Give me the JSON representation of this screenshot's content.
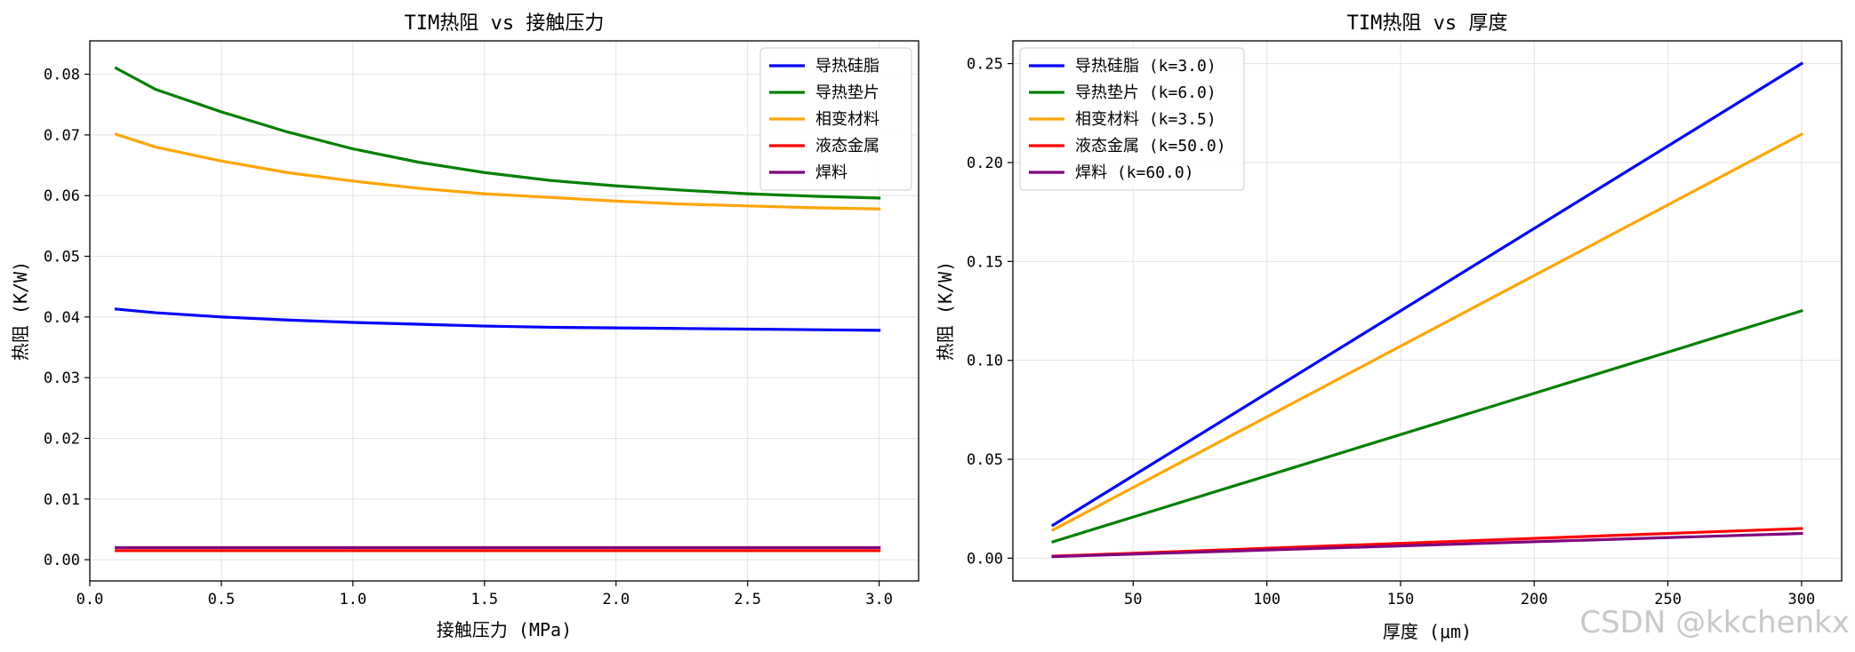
{
  "chart_data": [
    {
      "type": "line",
      "title": "TIM热阻 vs 接触压力",
      "xlabel": "接触压力 (MPa)",
      "ylabel": "热阻 (K/W)",
      "xlim": [
        -0.0,
        3.15
      ],
      "ylim": [
        -0.0035,
        0.0855
      ],
      "xticks": [
        0.0,
        0.5,
        1.0,
        1.5,
        2.0,
        2.5,
        3.0
      ],
      "xtick_labels": [
        "0.0",
        "0.5",
        "1.0",
        "1.5",
        "2.0",
        "2.5",
        "3.0"
      ],
      "yticks": [
        0.0,
        0.01,
        0.02,
        0.03,
        0.04,
        0.05,
        0.06,
        0.07,
        0.08
      ],
      "ytick_labels": [
        "0.00",
        "0.01",
        "0.02",
        "0.03",
        "0.04",
        "0.05",
        "0.06",
        "0.07",
        "0.08"
      ],
      "grid": true,
      "legend_position": "upper-right",
      "x": [
        0.1,
        0.25,
        0.5,
        0.75,
        1.0,
        1.25,
        1.5,
        1.75,
        2.0,
        2.25,
        2.5,
        2.75,
        3.0
      ],
      "series": [
        {
          "name": "导热硅脂",
          "color": "#0000ff",
          "values": [
            0.0413,
            0.0407,
            0.04,
            0.0395,
            0.0391,
            0.0388,
            0.0385,
            0.0383,
            0.0382,
            0.0381,
            0.038,
            0.0379,
            0.0378
          ]
        },
        {
          "name": "导热垫片",
          "color": "#008000",
          "values": [
            0.081,
            0.0775,
            0.0738,
            0.0705,
            0.0677,
            0.0655,
            0.0638,
            0.0625,
            0.0616,
            0.0609,
            0.0603,
            0.0599,
            0.0596
          ]
        },
        {
          "name": "相变材料",
          "color": "#ffa500",
          "values": [
            0.0701,
            0.068,
            0.0657,
            0.0638,
            0.0624,
            0.0612,
            0.0603,
            0.0597,
            0.0591,
            0.0586,
            0.0583,
            0.058,
            0.0578
          ]
        },
        {
          "name": "液态金属",
          "color": "#ff0000",
          "values": [
            0.0015,
            0.0015,
            0.0015,
            0.0015,
            0.0015,
            0.0015,
            0.0015,
            0.0015,
            0.0015,
            0.0015,
            0.0015,
            0.0015,
            0.0015
          ]
        },
        {
          "name": "焊料",
          "color": "#800080",
          "values": [
            0.002,
            0.002,
            0.002,
            0.002,
            0.002,
            0.002,
            0.002,
            0.002,
            0.002,
            0.002,
            0.002,
            0.002,
            0.002
          ]
        }
      ]
    },
    {
      "type": "line",
      "title": "TIM热阻 vs 厚度",
      "xlabel": "厚度 (μm)",
      "ylabel": "热阻 (K/W)",
      "xlim": [
        5,
        315
      ],
      "ylim": [
        -0.0115,
        0.2615
      ],
      "xticks": [
        50,
        100,
        150,
        200,
        250,
        300
      ],
      "xtick_labels": [
        "50",
        "100",
        "150",
        "200",
        "250",
        "300"
      ],
      "yticks": [
        0.0,
        0.05,
        0.1,
        0.15,
        0.2,
        0.25
      ],
      "ytick_labels": [
        "0.00",
        "0.05",
        "0.10",
        "0.15",
        "0.20",
        "0.25"
      ],
      "grid": true,
      "legend_position": "upper-left",
      "x": [
        20,
        300
      ],
      "series": [
        {
          "name": "导热硅脂 (k=3.0)",
          "color": "#0000ff",
          "values": [
            0.0167,
            0.25
          ]
        },
        {
          "name": "导热垫片 (k=6.0)",
          "color": "#008000",
          "values": [
            0.0083,
            0.125
          ]
        },
        {
          "name": "相变材料 (k=3.5)",
          "color": "#ffa500",
          "values": [
            0.0143,
            0.2143
          ]
        },
        {
          "name": "液态金属 (k=50.0)",
          "color": "#ff0000",
          "values": [
            0.001,
            0.015
          ]
        },
        {
          "name": "焊料 (k=60.0)",
          "color": "#800080",
          "values": [
            0.0008,
            0.0125
          ]
        }
      ]
    }
  ],
  "watermark": "CSDN @kkchenkx"
}
